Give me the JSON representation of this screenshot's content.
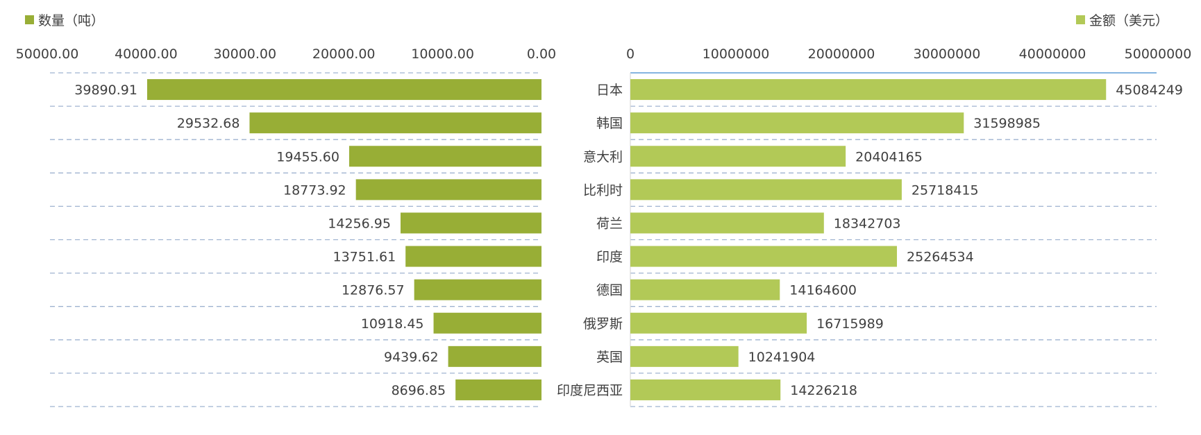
{
  "chart_data": [
    {
      "type": "bar",
      "orientation": "horizontal",
      "direction": "right-to-left",
      "legend": {
        "label": "数量（吨）",
        "placement": "top-left"
      },
      "series": [
        {
          "name": "数量（吨）",
          "color": "#98AE36",
          "values": [
            39890.91,
            29532.68,
            19455.6,
            18773.92,
            14256.95,
            13751.61,
            12876.57,
            10918.45,
            9439.62,
            8696.85
          ],
          "labels": [
            "39890.91",
            "29532.68",
            "19455.60",
            "18773.92",
            "14256.95",
            "13751.61",
            "12876.57",
            "10918.45",
            "9439.62",
            "8696.85"
          ]
        }
      ],
      "xlim": [
        0,
        50000
      ],
      "ticks": [
        "50000.00",
        "40000.00",
        "30000.00",
        "20000.00",
        "10000.00",
        "0.00"
      ],
      "tick_values": [
        50000,
        40000,
        30000,
        20000,
        10000,
        0
      ],
      "grid": "dashed"
    },
    {
      "type": "bar",
      "orientation": "horizontal",
      "direction": "left-to-right",
      "legend": {
        "label": "金额（美元）",
        "placement": "top-right"
      },
      "categories": [
        "日本",
        "韩国",
        "意大利",
        "比利时",
        "荷兰",
        "印度",
        "德国",
        "俄罗斯",
        "英国",
        "印度尼西亚"
      ],
      "series": [
        {
          "name": "金额（美元）",
          "color": "#B2C957",
          "values": [
            45084249,
            31598985,
            20404165,
            25718415,
            18342703,
            25264534,
            14164600,
            16715989,
            10241904,
            14226218
          ],
          "labels": [
            "45084249",
            "31598985",
            "20404165",
            "25718415",
            "18342703",
            "25264534",
            "14164600",
            "16715989",
            "10241904",
            "14226218"
          ]
        }
      ],
      "xlim": [
        0,
        50000000
      ],
      "ticks": [
        "0",
        "10000000",
        "20000000",
        "30000000",
        "40000000",
        "50000000"
      ],
      "tick_values": [
        0,
        10000000,
        20000000,
        30000000,
        40000000,
        50000000
      ],
      "grid": "dashed"
    }
  ],
  "colors": {
    "grid": "#9FB3D0",
    "axis": "#5B9BD5",
    "text": "#404040"
  }
}
